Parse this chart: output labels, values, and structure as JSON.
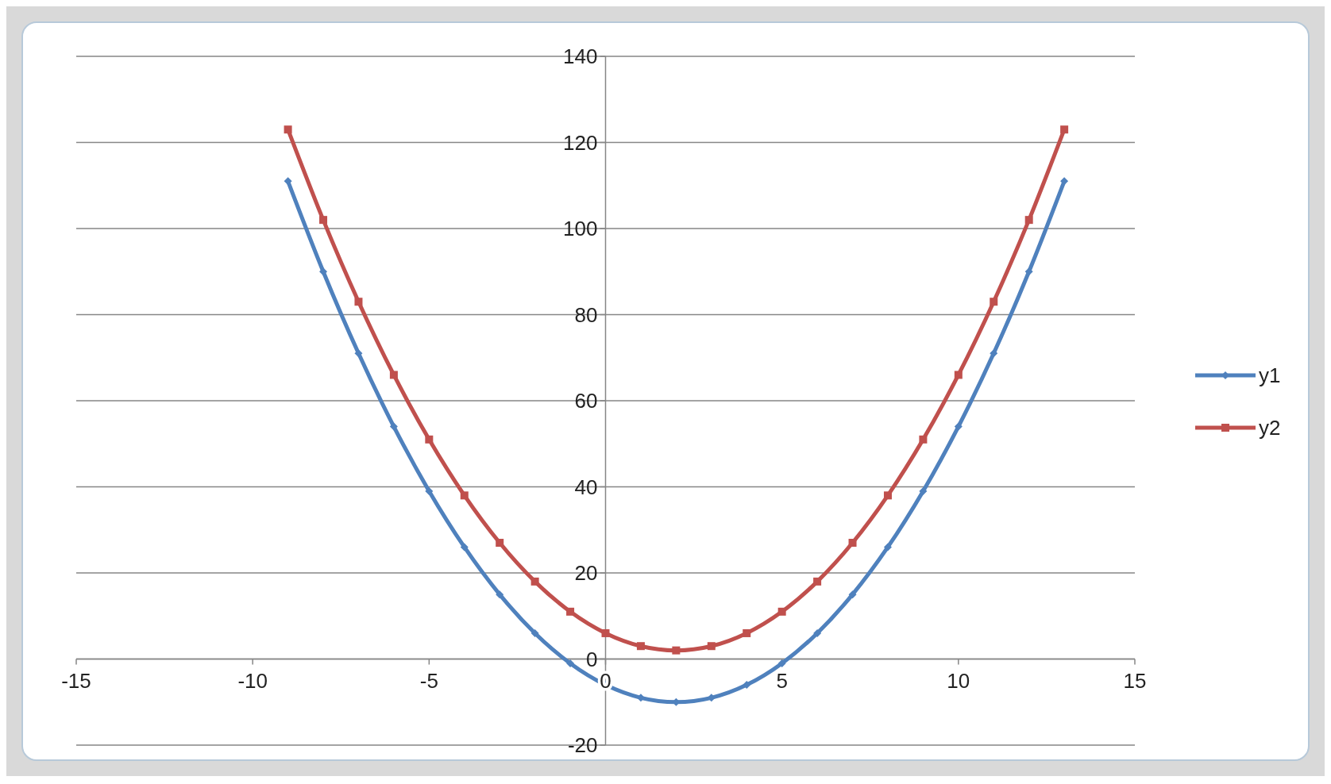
{
  "chart_data": {
    "type": "line",
    "x": [
      -9,
      -8,
      -7,
      -6,
      -5,
      -4,
      -3,
      -2,
      -1,
      0,
      1,
      2,
      3,
      4,
      5,
      6,
      7,
      8,
      9,
      10,
      11,
      12,
      13
    ],
    "series": [
      {
        "name": "y1",
        "color": "#4f81bd",
        "marker": "diamond",
        "values": [
          111,
          90,
          71,
          54,
          39,
          26,
          15,
          6,
          -1,
          -6,
          -9,
          -10,
          -9,
          -6,
          -1,
          6,
          15,
          26,
          39,
          54,
          71,
          90,
          111
        ]
      },
      {
        "name": "y2",
        "color": "#c0504d",
        "marker": "square",
        "values": [
          123,
          102,
          83,
          66,
          51,
          38,
          27,
          18,
          11,
          6,
          3,
          2,
          3,
          6,
          11,
          18,
          27,
          38,
          51,
          66,
          83,
          102,
          123
        ]
      }
    ],
    "xlim": [
      -15,
      15
    ],
    "xticks": [
      -15,
      -10,
      -5,
      0,
      5,
      10,
      15
    ],
    "ylim": [
      -20,
      140
    ],
    "yticks": [
      -20,
      0,
      20,
      40,
      60,
      80,
      100,
      120,
      140
    ],
    "grid": "y",
    "legend": "right",
    "line_style": "solid"
  }
}
